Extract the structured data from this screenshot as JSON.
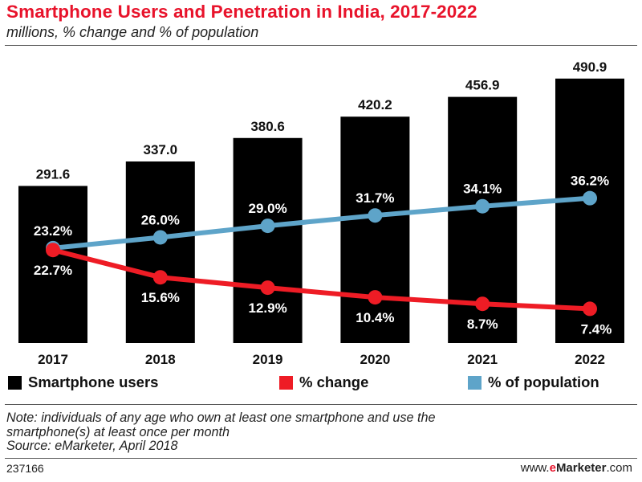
{
  "chart_data": {
    "type": "bar",
    "title": "Smartphone Users and Penetration in India, 2017-2022",
    "subtitle": "millions, % change and % of population",
    "categories": [
      "2017",
      "2018",
      "2019",
      "2020",
      "2021",
      "2022"
    ],
    "series": [
      {
        "name": "Smartphone users",
        "type": "bar",
        "color": "#000000",
        "values": [
          291.6,
          337.0,
          380.6,
          420.2,
          456.9,
          490.9
        ],
        "labels": [
          "291.6",
          "337.0",
          "380.6",
          "420.2",
          "456.9",
          "490.9"
        ]
      },
      {
        "name": "% change",
        "type": "line",
        "color": "#ee1c25",
        "values": [
          22.7,
          15.6,
          12.9,
          10.4,
          8.7,
          7.4
        ],
        "labels": [
          "22.7%",
          "15.6%",
          "12.9%",
          "10.4%",
          "8.7%",
          "7.4%"
        ]
      },
      {
        "name": "% of population",
        "type": "line",
        "color": "#5ea4c9",
        "values": [
          23.2,
          26.0,
          29.0,
          31.7,
          34.1,
          36.2
        ],
        "labels": [
          "23.2%",
          "26.0%",
          "29.0%",
          "31.7%",
          "34.1%",
          "36.2%"
        ]
      }
    ],
    "bar_ylim": [
      0,
      510
    ],
    "line_ylim": [
      -1.5,
      70
    ],
    "grid": false,
    "legend_position": "bottom"
  },
  "legend": {
    "users": "Smartphone users",
    "change": "% change",
    "population": "% of population"
  },
  "note": {
    "line1": "Note: individuals of any age who own at least one smartphone and use the",
    "line2": "smartphone(s) at least once per month",
    "source": "Source: eMarketer, April 2018"
  },
  "footer": {
    "id": "237166",
    "brand_prefix": "www.",
    "brand_e": "e",
    "brand_name": "Marketer",
    "brand_suffix": ".com"
  },
  "colors": {
    "title": "#e8132b",
    "bar": "#000000",
    "change": "#ee1c25",
    "population": "#5ea4c9"
  }
}
